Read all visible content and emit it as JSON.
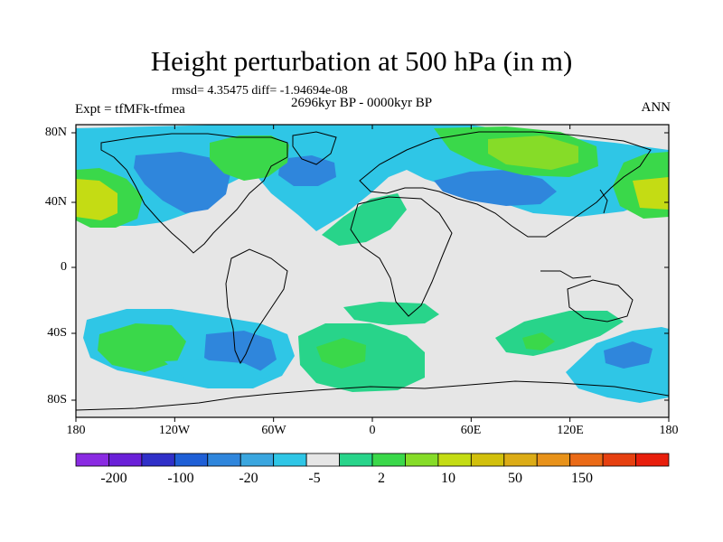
{
  "title": "Height perturbation at 500 hPa (in m)",
  "stats": "rmsd= 4.35475 diff= -1.94694e-08",
  "period": "2696kyr BP - 0000kyr BP",
  "experiment": "Expt = tfMFk-tfmea",
  "season": "ANN",
  "map": {
    "lon_range": [
      -180,
      180
    ],
    "lat_range": [
      -90,
      90
    ],
    "x_ticks": [
      "180",
      "120W",
      "60W",
      "0",
      "60E",
      "120E",
      "180"
    ],
    "y_ticks": [
      "80N",
      "40N",
      "0",
      "40S",
      "80S"
    ]
  },
  "colorbar": {
    "colors": [
      "#8a2be2",
      "#6a20d8",
      "#3030c8",
      "#1f5fd6",
      "#2f86dc",
      "#3aa6df",
      "#2fc6e6",
      "#e6e6e6",
      "#28d48a",
      "#3ad84a",
      "#86dc28",
      "#c4dc14",
      "#d2c00c",
      "#dcac16",
      "#e8921a",
      "#ea6a16",
      "#e64010",
      "#e81e0c"
    ],
    "tick_labels": [
      "-200",
      "-100",
      "-20",
      "-5",
      "2",
      "10",
      "50",
      "150"
    ],
    "background_color": "#e6e6e6"
  }
}
